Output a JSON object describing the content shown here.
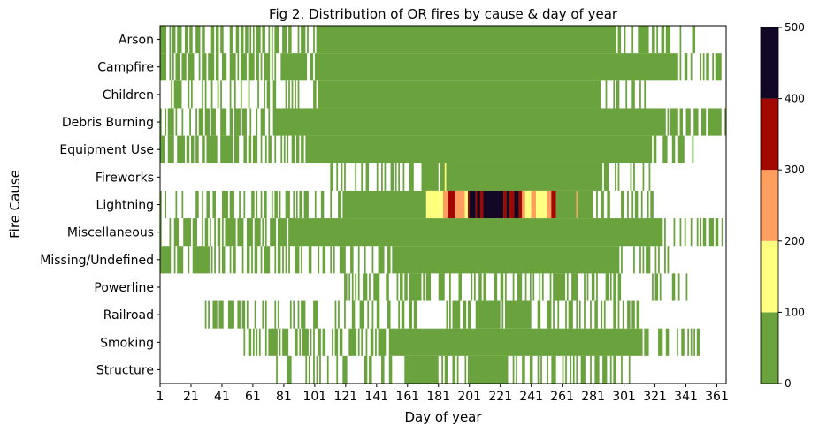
{
  "chart_data": {
    "type": "heatmap",
    "title": "Fig 2. Distribution of OR fires by cause & day of year",
    "xlabel": "Day of year",
    "ylabel": "Fire Cause",
    "xlim": [
      1,
      366
    ],
    "x_ticks": [
      1,
      21,
      41,
      61,
      81,
      101,
      121,
      141,
      161,
      181,
      201,
      221,
      241,
      261,
      281,
      301,
      321,
      341,
      361
    ],
    "categories": [
      "Arson",
      "Campfire",
      "Children",
      "Debris Burning",
      "Equipment Use",
      "Fireworks",
      "Lightning",
      "Miscellaneous",
      "Missing/Undefined",
      "Powerline",
      "Railroad",
      "Smoking",
      "Structure"
    ],
    "colorbar": {
      "bounds": [
        0,
        100,
        200,
        300,
        400,
        500
      ],
      "tick_labels": [
        "0",
        "100",
        "200",
        "300",
        "400",
        "500"
      ],
      "colors": [
        "#6aa23d",
        "#ffff80",
        "#ff9f5f",
        "#a00800",
        "#120826"
      ]
    },
    "empty_color": "#ffffff",
    "rows": [
      {
        "name": "Arson",
        "solid": [
          [
            104,
            295
          ]
        ],
        "sparse": [
          [
            1,
            103,
            0.5
          ],
          [
            296,
            330,
            0.5
          ],
          [
            331,
            350,
            0.3
          ]
        ],
        "seed": 11
      },
      {
        "name": "Campfire",
        "solid": [
          [
            80,
            95
          ],
          [
            101,
            335
          ]
        ],
        "sparse": [
          [
            1,
            79,
            0.6
          ],
          [
            96,
            100,
            0.4
          ],
          [
            336,
            364,
            0.5
          ]
        ],
        "seed": 23
      },
      {
        "name": "Children",
        "solid": [
          [
            104,
            284
          ]
        ],
        "sparse": [
          [
            8,
            103,
            0.3
          ],
          [
            285,
            315,
            0.4
          ]
        ],
        "seed": 37
      },
      {
        "name": "Debris Burning",
        "solid": [
          [
            78,
            325
          ]
        ],
        "sparse": [
          [
            1,
            77,
            0.6
          ],
          [
            326,
            366,
            0.7
          ]
        ],
        "seed": 41
      },
      {
        "name": "Equipment Use",
        "solid": [
          [
            105,
            318
          ]
        ],
        "sparse": [
          [
            1,
            104,
            0.55
          ],
          [
            319,
            345,
            0.5
          ]
        ],
        "seed": 53
      },
      {
        "name": "Fireworks",
        "solid": [
          [
            171,
            180
          ],
          [
            184,
            286
          ]
        ],
        "sparse": [
          [
            108,
            170,
            0.2
          ],
          [
            181,
            183,
            0.5
          ],
          [
            287,
            320,
            0.3
          ]
        ],
        "seed": 67
      },
      {
        "name": "Lightning",
        "solid": [
          [
            120,
            280
          ]
        ],
        "sparse": [
          [
            1,
            119,
            0.35
          ],
          [
            281,
            325,
            0.4
          ]
        ],
        "seed": 71
      },
      {
        "name": "Miscellaneous",
        "solid": [
          [
            85,
            324
          ]
        ],
        "sparse": [
          [
            1,
            84,
            0.65
          ],
          [
            325,
            364,
            0.5
          ]
        ],
        "seed": 83
      },
      {
        "name": "Missing/Undefined",
        "solid": [
          [
            151,
            295
          ]
        ],
        "sparse": [
          [
            1,
            150,
            0.45
          ],
          [
            296,
            330,
            0.4
          ]
        ],
        "seed": 97
      },
      {
        "name": "Powerline",
        "solid": [],
        "sparse": [
          [
            120,
            300,
            0.45
          ],
          [
            301,
            345,
            0.15
          ]
        ],
        "seed": 101
      },
      {
        "name": "Railroad",
        "solid": [
          [
            205,
            220
          ],
          [
            225,
            240
          ]
        ],
        "sparse": [
          [
            30,
            204,
            0.3
          ],
          [
            221,
            224,
            0.6
          ],
          [
            241,
            310,
            0.45
          ]
        ],
        "seed": 113
      },
      {
        "name": "Smoking",
        "solid": [
          [
            152,
            312
          ]
        ],
        "sparse": [
          [
            55,
            151,
            0.5
          ],
          [
            313,
            350,
            0.4
          ]
        ],
        "seed": 127
      },
      {
        "name": "Structure",
        "solid": [
          [
            160,
            180
          ],
          [
            200,
            220
          ]
        ],
        "sparse": [
          [
            75,
            159,
            0.25
          ],
          [
            181,
            199,
            0.5
          ],
          [
            221,
            305,
            0.45
          ]
        ],
        "seed": 131
      }
    ],
    "lightning_hot": {
      "row": "Lightning",
      "cells": [
        {
          "from": 173,
          "to": 183,
          "value": 150
        },
        {
          "from": 184,
          "to": 186,
          "value": 250
        },
        {
          "from": 187,
          "to": 191,
          "value": 350
        },
        {
          "from": 192,
          "to": 197,
          "value": 250
        },
        {
          "from": 198,
          "to": 199,
          "value": 150
        },
        {
          "from": 200,
          "to": 200,
          "value": 350
        },
        {
          "from": 201,
          "to": 204,
          "value": 450
        },
        {
          "from": 205,
          "to": 205,
          "value": 350
        },
        {
          "from": 206,
          "to": 207,
          "value": 450
        },
        {
          "from": 208,
          "to": 209,
          "value": 350
        },
        {
          "from": 210,
          "to": 222,
          "value": 450
        },
        {
          "from": 223,
          "to": 224,
          "value": 350
        },
        {
          "from": 225,
          "to": 226,
          "value": 450
        },
        {
          "from": 227,
          "to": 229,
          "value": 350
        },
        {
          "from": 230,
          "to": 232,
          "value": 450
        },
        {
          "from": 233,
          "to": 234,
          "value": 350
        },
        {
          "from": 235,
          "to": 236,
          "value": 250
        },
        {
          "from": 237,
          "to": 240,
          "value": 150
        },
        {
          "from": 241,
          "to": 243,
          "value": 250
        },
        {
          "from": 244,
          "to": 250,
          "value": 150
        },
        {
          "from": 251,
          "to": 253,
          "value": 250
        },
        {
          "from": 254,
          "to": 256,
          "value": 350
        },
        {
          "from": 257,
          "to": 260,
          "value": 50
        },
        {
          "from": 270,
          "to": 270,
          "value": 250
        }
      ]
    },
    "fireworks_hot": {
      "row": "Fireworks",
      "day": 185,
      "value": 150
    }
  }
}
